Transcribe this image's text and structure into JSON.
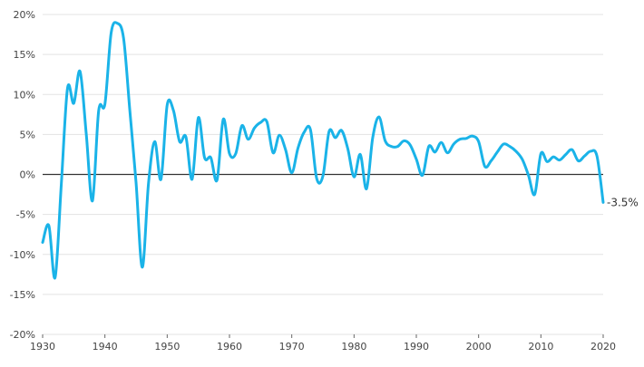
{
  "chart_data": {
    "type": "line",
    "title": "",
    "xlabel": "",
    "ylabel": "",
    "xlim": [
      1930,
      2020
    ],
    "ylim": [
      -20,
      20
    ],
    "x_ticks": [
      1930,
      1940,
      1950,
      1960,
      1970,
      1980,
      1990,
      2000,
      2010,
      2020
    ],
    "y_ticks": [
      -20,
      -15,
      -10,
      -5,
      0,
      5,
      10,
      15,
      20
    ],
    "y_tick_labels": [
      "-20%",
      "-15%",
      "-10%",
      "-5%",
      "0%",
      "5%",
      "10%",
      "15%",
      "20%"
    ],
    "grid": "horizontal",
    "legend": "none",
    "line_color": "#1ab3e8",
    "zero_line_color": "#333333",
    "grid_color": "#e3e3e3",
    "annotation": {
      "x": 2020,
      "y": -3.5,
      "text": "-3.5%"
    },
    "series": [
      {
        "x": [
          1930,
          1931,
          1932,
          1933,
          1934,
          1935,
          1936,
          1937,
          1938,
          1939,
          1940,
          1941,
          1942,
          1943,
          1944,
          1945,
          1946,
          1947,
          1948,
          1949,
          1950,
          1951,
          1952,
          1953,
          1954,
          1955,
          1956,
          1957,
          1958,
          1959,
          1960,
          1961,
          1962,
          1963,
          1964,
          1965,
          1966,
          1967,
          1968,
          1969,
          1970,
          1971,
          1972,
          1973,
          1974,
          1975,
          1976,
          1977,
          1978,
          1979,
          1980,
          1981,
          1982,
          1983,
          1984,
          1985,
          1986,
          1987,
          1988,
          1989,
          1990,
          1991,
          1992,
          1993,
          1994,
          1995,
          1996,
          1997,
          1998,
          1999,
          2000,
          2001,
          2002,
          2003,
          2004,
          2005,
          2006,
          2007,
          2008,
          2009,
          2010,
          2011,
          2012,
          2013,
          2014,
          2015,
          2016,
          2017,
          2018,
          2019,
          2020
        ],
        "values": [
          -8.5,
          -6.4,
          -12.9,
          -1.2,
          10.8,
          8.9,
          12.9,
          5.1,
          -3.3,
          8.0,
          8.8,
          17.7,
          18.9,
          17.0,
          8.0,
          -1.0,
          -11.6,
          -1.1,
          4.1,
          -0.6,
          8.7,
          8.0,
          4.1,
          4.7,
          -0.6,
          7.1,
          2.1,
          2.1,
          -0.7,
          6.9,
          2.6,
          2.6,
          6.1,
          4.4,
          5.8,
          6.5,
          6.6,
          2.7,
          4.9,
          3.1,
          0.2,
          3.3,
          5.3,
          5.6,
          -0.5,
          -0.2,
          5.4,
          4.6,
          5.5,
          3.2,
          -0.3,
          2.5,
          -1.8,
          4.6,
          7.2,
          4.2,
          3.5,
          3.5,
          4.2,
          3.7,
          1.9,
          -0.1,
          3.5,
          2.8,
          4.0,
          2.7,
          3.8,
          4.4,
          4.5,
          4.8,
          4.1,
          1.0,
          1.7,
          2.8,
          3.8,
          3.5,
          2.9,
          1.9,
          -0.1,
          -2.5,
          2.6,
          1.6,
          2.2,
          1.8,
          2.5,
          3.1,
          1.7,
          2.3,
          2.9,
          2.3,
          -3.5
        ]
      }
    ]
  }
}
